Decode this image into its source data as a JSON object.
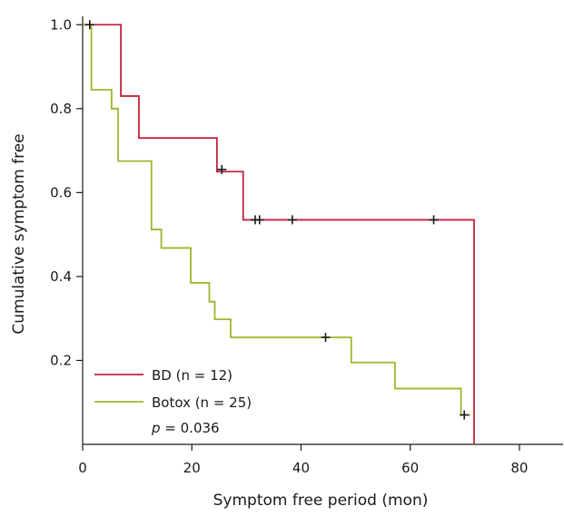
{
  "chart_data": {
    "type": "line",
    "subtype": "kaplan-meier step",
    "xlabel": "Symptom free period (mon)",
    "ylabel": "Cumulative symptom free",
    "xlim": [
      0,
      88
    ],
    "ylim": [
      0.0,
      1.02
    ],
    "xticks": [
      0,
      20,
      40,
      60,
      80
    ],
    "xtick_labels": [
      "0",
      "20",
      "40",
      "60",
      "80"
    ],
    "yticks": [
      0.2,
      0.4,
      0.6,
      0.8,
      1.0
    ],
    "ytick_labels": [
      "0.2",
      "0.4",
      "0.6",
      "0.8",
      "1.0"
    ],
    "grid": false,
    "legend_position": "bottom-left",
    "annotation": {
      "prefix": "p",
      "text": " = 0.036"
    },
    "series": [
      {
        "name": "BD (n = 12)",
        "color": "#c0243b",
        "steps": [
          [
            0,
            1.0
          ],
          [
            7,
            0.83
          ],
          [
            10.3,
            0.73
          ],
          [
            24.6,
            0.65
          ],
          [
            29.4,
            0.535
          ],
          [
            71.7,
            0.0
          ]
        ],
        "end_x": 71.7,
        "censored": [
          [
            25.5,
            0.655
          ],
          [
            31.6,
            0.535
          ],
          [
            32.4,
            0.535
          ],
          [
            38.4,
            0.535
          ],
          [
            64.3,
            0.535
          ]
        ]
      },
      {
        "name": "Botox (n = 25)",
        "color": "#9db62b",
        "steps": [
          [
            0,
            1.0
          ],
          [
            1.6,
            0.845
          ],
          [
            5.3,
            0.8
          ],
          [
            6.5,
            0.675
          ],
          [
            12.6,
            0.512
          ],
          [
            14.4,
            0.468
          ],
          [
            19.8,
            0.385
          ],
          [
            23.2,
            0.34
          ],
          [
            24.2,
            0.298
          ],
          [
            27.1,
            0.255
          ],
          [
            49.2,
            0.195
          ],
          [
            57.2,
            0.133
          ],
          [
            69.3,
            0.07
          ],
          [
            71.0,
            0.07
          ]
        ],
        "end_x": 71.0,
        "censored": [
          [
            1.3,
            1.0
          ],
          [
            44.5,
            0.255
          ],
          [
            69.9,
            0.07
          ]
        ]
      }
    ]
  }
}
